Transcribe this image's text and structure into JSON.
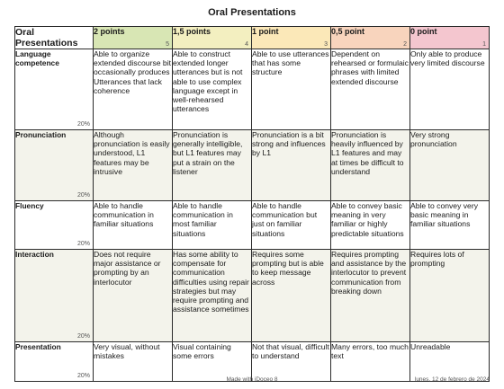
{
  "document": {
    "title": "Oral Presentations"
  },
  "rubric": {
    "header_label": "Oral Presentations",
    "levels": [
      {
        "label": "2 points",
        "num": "5",
        "color": "#d8e6b4"
      },
      {
        "label": "1,5 points",
        "num": "4",
        "color": "#f3efc0"
      },
      {
        "label": "1 point",
        "num": "3",
        "color": "#fbe8b8"
      },
      {
        "label": "0,5 point",
        "num": "2",
        "color": "#f8d4bd"
      },
      {
        "label": "0 point",
        "num": "1",
        "color": "#f4c6cf"
      }
    ],
    "criteria": [
      {
        "name": "Language competence",
        "weight": "20%",
        "cells": [
          "Able to organize extended discourse bit occasionally produces Utterances that lack coherence",
          "Able to construct extended longer utterances but is not able to use complex language except in well-rehearsed utterances",
          "Able to use utterances that has some structure",
          "Dependent on rehearsed or formulaic phrases with limited extended discourse",
          "Only able to produce very limited discourse"
        ]
      },
      {
        "name": "Pronunciation",
        "weight": "20%",
        "cells": [
          "Although pronunciation is easily understood, L1 features may be intrusive",
          "Pronunciation is generally intelligible, but L1 features may put a strain on the listener",
          "Pronunciation is a bit strong and influences by L1",
          "Pronunciation is heavily influenced by L1 features and may at times be difficult to understand",
          "Very strong pronunciation"
        ]
      },
      {
        "name": "Fluency",
        "weight": "20%",
        "cells": [
          "Able to handle communication in familiar situations",
          "Able to handle communication in most familiar situations",
          "Able to handle communication but just on familiar situations",
          "Able to convey basic meaning in very familiar or highly predictable situations",
          "Able to convey very basic meaning in familiar situations"
        ]
      },
      {
        "name": "Interaction",
        "weight": "20%",
        "cells": [
          "Does not require major assistance or prompting by an interlocutor",
          "Has some ability to compensate for communication difficulties using repair strategies but may require prompting and assistance sometimes",
          "Requires some prompting but is able to keep message across",
          "Requires prompting and assistance by the interlocutor to prevent communication from breaking down",
          "Requires lots of prompting"
        ]
      },
      {
        "name": "Presentation",
        "weight": "20%",
        "cells": [
          "Very visual, without mistakes",
          "Visual containing some errors",
          "Not that visual, difficult to understand",
          "Many errors, too much text",
          "Unreadable"
        ]
      }
    ]
  },
  "footer": {
    "made_with": "Made with iDoceo 8",
    "date": "lunes, 12 de febrero de 2024"
  }
}
